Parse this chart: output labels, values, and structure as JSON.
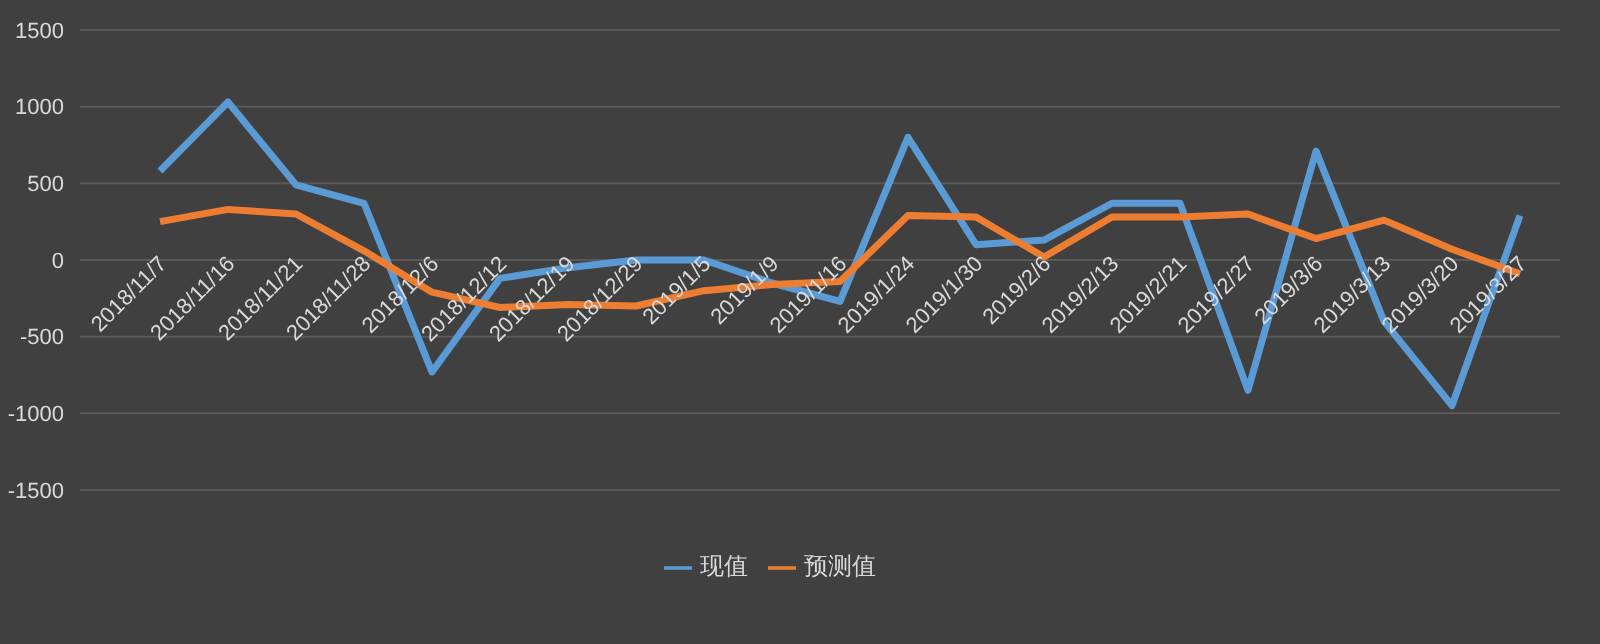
{
  "chart_data": {
    "type": "line",
    "categories": [
      "2018/11/7",
      "2018/11/16",
      "2018/11/21",
      "2018/11/28",
      "2018/12/6",
      "2018/12/12",
      "2018/12/19",
      "2018/12/29",
      "2019/1/5",
      "2019/1/9",
      "2019/1/16",
      "2019/1/24",
      "2019/1/30",
      "2019/2/6",
      "2019/2/13",
      "2019/2/21",
      "2019/2/27",
      "2019/3/6",
      "2019/3/13",
      "2019/3/20",
      "2019/3/27"
    ],
    "series": [
      {
        "name": "现值",
        "color": "#5b9bd5",
        "values": [
          580,
          1030,
          490,
          370,
          -730,
          -120,
          -50,
          0,
          0,
          -150,
          -270,
          800,
          100,
          130,
          370,
          370,
          -850,
          710,
          -400,
          -950,
          290
        ]
      },
      {
        "name": "预测值",
        "color": "#ed7d31",
        "values": [
          250,
          330,
          300,
          60,
          -210,
          -310,
          -290,
          -300,
          -200,
          -160,
          -140,
          290,
          280,
          20,
          280,
          280,
          300,
          140,
          260,
          70,
          -90
        ]
      }
    ],
    "ylim": [
      -1500,
      1500
    ],
    "yticks": [
      -1500,
      -1000,
      -500,
      0,
      500,
      1000,
      1500
    ],
    "grid": "y",
    "legend": "bottom",
    "marker": "none",
    "line_style": "solid"
  }
}
